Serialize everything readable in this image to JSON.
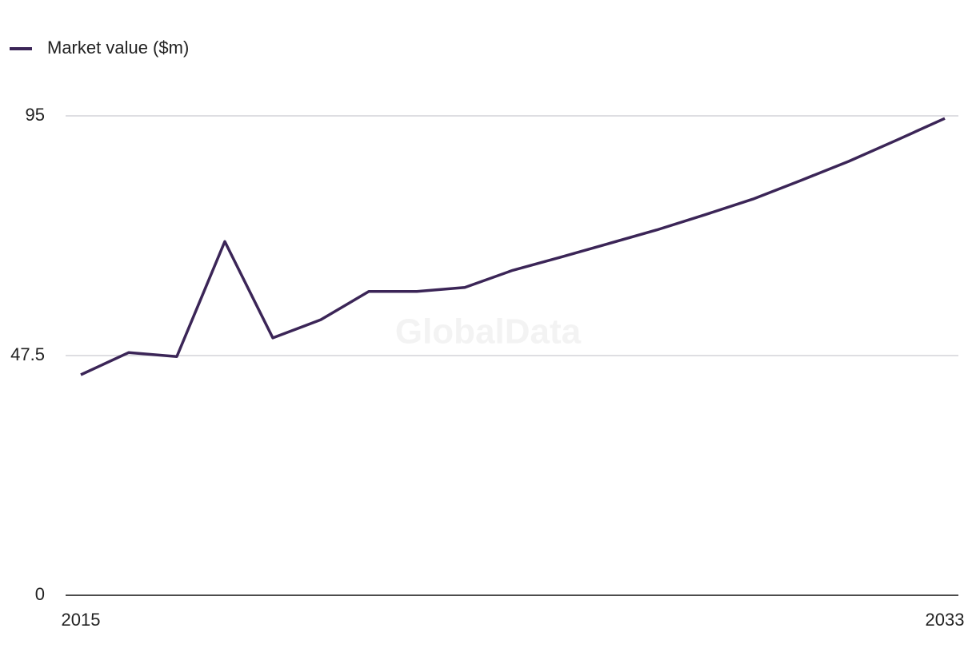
{
  "chart_data": {
    "type": "line",
    "watermark": "GlobalData",
    "x": [
      2015,
      2016,
      2017,
      2018,
      2019,
      2020,
      2021,
      2022,
      2023,
      2024,
      2025,
      2026,
      2027,
      2028,
      2029,
      2030,
      2031,
      2032,
      2033
    ],
    "series": [
      {
        "name": "Market value ($m)",
        "color": "#3b2557",
        "values": [
          43.7,
          48.1,
          47.3,
          70.1,
          51.0,
          54.6,
          60.2,
          60.2,
          61.0,
          64.4,
          67.0,
          69.7,
          72.4,
          75.4,
          78.5,
          82.2,
          86.0,
          90.2,
          94.5
        ]
      }
    ],
    "xlim": [
      2015,
      2033
    ],
    "xticks": [
      2015,
      2033
    ],
    "ylim": [
      0,
      95
    ],
    "yticks": [
      0,
      47.5,
      95
    ],
    "grid": true,
    "legend": "top-left"
  }
}
